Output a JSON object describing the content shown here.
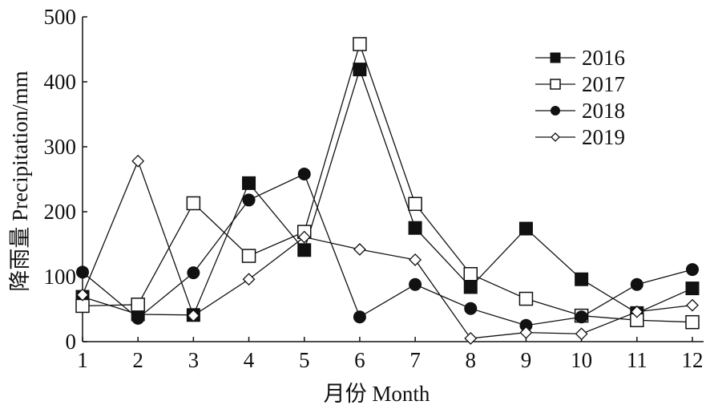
{
  "chart_data": {
    "type": "line",
    "title": "",
    "xlabel": "月份 Month",
    "ylabel": "降雨量 Precipitation/mm",
    "x": [
      1,
      2,
      3,
      4,
      5,
      6,
      7,
      8,
      9,
      10,
      11,
      12
    ],
    "xticks": [
      "1",
      "2",
      "3",
      "4",
      "5",
      "6",
      "7",
      "8",
      "9",
      "10",
      "11",
      "12"
    ],
    "yticks": [
      "0",
      "100",
      "200",
      "300",
      "400",
      "500"
    ],
    "ylim": [
      0,
      500
    ],
    "grid": false,
    "legend_position": "top-right",
    "series": [
      {
        "name": "2016",
        "marker": "filled-square",
        "values": [
          69,
          42,
          41,
          244,
          141,
          419,
          175,
          84,
          174,
          96,
          44,
          82
        ]
      },
      {
        "name": "2017",
        "marker": "open-square",
        "values": [
          55,
          57,
          213,
          132,
          169,
          458,
          212,
          104,
          66,
          40,
          33,
          30
        ]
      },
      {
        "name": "2018",
        "marker": "filled-circle",
        "values": [
          107,
          36,
          106,
          218,
          258,
          38,
          88,
          51,
          25,
          38,
          88,
          111
        ]
      },
      {
        "name": "2019",
        "marker": "open-diamond",
        "values": [
          72,
          278,
          40,
          96,
          161,
          142,
          126,
          5,
          14,
          12,
          46,
          56
        ]
      }
    ]
  }
}
